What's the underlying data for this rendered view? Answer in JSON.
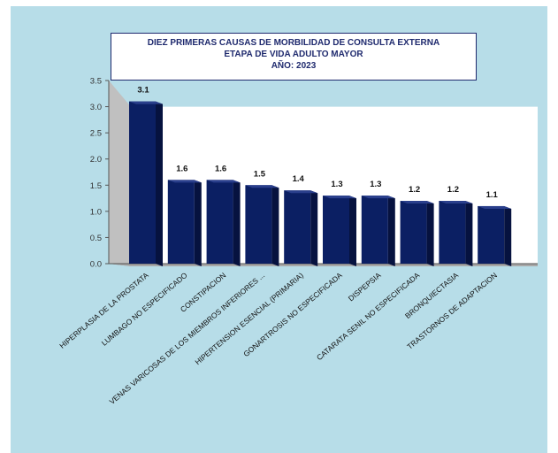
{
  "chart_data": {
    "type": "bar",
    "title_lines": [
      "DIEZ PRIMERAS CAUSAS DE MORBILIDAD DE CONSULTA EXTERNA",
      "ETAPA DE VIDA ADULTO MAYOR",
      "AÑO: 2023"
    ],
    "categories": [
      "HIPERPLASIA DE LA PROSTATA",
      "LUMBAGO NO ESPECIFICADO",
      "CONSTIPACION",
      "VENAS VARICOSAS DE LOS MIEMBROS INFERIORES ...",
      "HIPERTENSION ESENCIAL (PRIMARIA)",
      "GONARTROSIS NO ESPECIFICADA",
      "DISPEPSIA",
      "CATARATA SENIL NO ESPECIFICADA",
      "BRONQUIECTASIA",
      "TRASTORNOS DE ADAPTACION"
    ],
    "values": [
      3.1,
      1.6,
      1.6,
      1.5,
      1.4,
      1.3,
      1.3,
      1.2,
      1.2,
      1.1
    ],
    "value_labels": [
      "3.1",
      "1.6",
      "1.6",
      "1.5",
      "1.4",
      "1.3",
      "1.3",
      "1.2",
      "1.2",
      "1.1"
    ],
    "yticks": [
      "0.0",
      "0.5",
      "1.0",
      "1.5",
      "2.0",
      "2.5",
      "3.0",
      "3.5"
    ],
    "ylim": [
      0,
      3.5
    ],
    "grid": false,
    "colors": {
      "background": "#b7dde8",
      "plot_back": "#ffffff",
      "wall_side": "#c0c0c0",
      "floor": "#a8a8a8",
      "bar_front": "#0b1f63",
      "bar_side": "#06123f",
      "bar_top": "#2a3f8c",
      "title_text": "#1f2a6e"
    }
  }
}
